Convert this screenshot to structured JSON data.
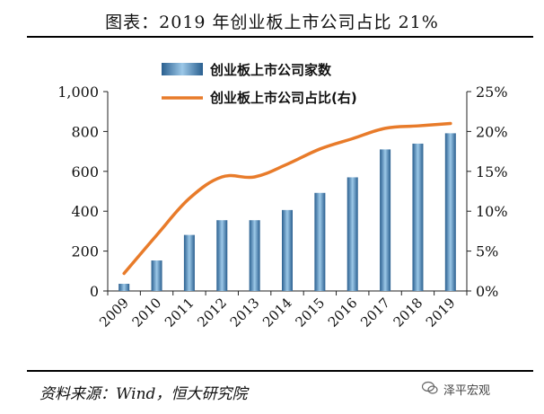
{
  "title": "图表：2019 年创业板上市公司占比 21%",
  "source": "资料来源：Wind，恒大研究院",
  "watermark": "泽平宏观",
  "chart_data": {
    "type": "bar",
    "categories": [
      "2009",
      "2010",
      "2011",
      "2012",
      "2013",
      "2014",
      "2015",
      "2016",
      "2017",
      "2018",
      "2019"
    ],
    "series": [
      {
        "name": "创业板上市公司家数",
        "type": "bar",
        "axis": "left",
        "values": [
          36,
          153,
          281,
          355,
          355,
          406,
          492,
          570,
          710,
          739,
          791
        ]
      },
      {
        "name": "创业板上市公司占比(右)",
        "type": "line",
        "axis": "right",
        "values": [
          2.2,
          7.0,
          11.6,
          14.3,
          14.3,
          15.9,
          17.8,
          19.1,
          20.4,
          20.7,
          21.0
        ]
      }
    ],
    "left_axis": {
      "min": 0,
      "max": 1000,
      "ticks": [
        "0",
        "200",
        "400",
        "600",
        "800",
        "1,000"
      ]
    },
    "right_axis": {
      "min": 0,
      "max": 25,
      "ticks": [
        "0%",
        "5%",
        "10%",
        "15%",
        "20%",
        "25%"
      ]
    },
    "colors": {
      "bar": "#3f86c0",
      "bar_dark": "#2a5f8f",
      "bar_light": "#9cc8e8",
      "line": "#e87b2a"
    },
    "legend_position": "top-center"
  }
}
